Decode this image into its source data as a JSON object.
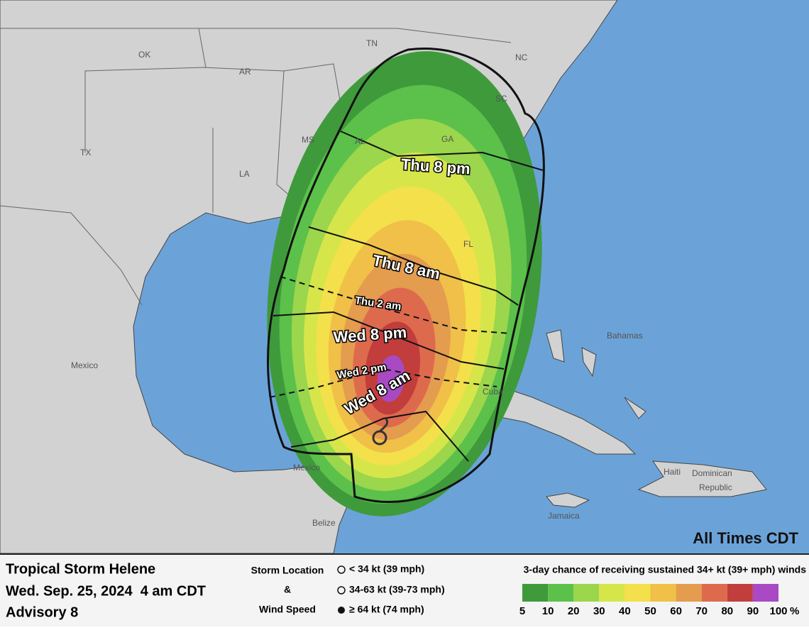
{
  "map": {
    "labels": {
      "ok": "OK",
      "ar": "AR",
      "tn": "TN",
      "nc": "NC",
      "sc": "SC",
      "ga": "GA",
      "al": "AL",
      "ms": "MS",
      "la": "LA",
      "tx": "TX",
      "fl": "FL",
      "mexico_west": "Mexico",
      "mexico_yucatan": "Mexico",
      "bahamas": "Bahamas",
      "cuba": "Cuba",
      "haiti": "Haiti",
      "dominican": "Dominican",
      "republic": "Republic",
      "jamaica": "Jamaica",
      "belize": "Belize"
    },
    "times": [
      "Thu 8 pm",
      "Thu 8 am",
      "Thu 2 am",
      "Wed 8 pm",
      "Wed 2 pm",
      "Wed 8 am"
    ],
    "note": "All Times CDT"
  },
  "footer": {
    "storm": "Tropical Storm Helene",
    "date": "Wed. Sep. 25, 2024  4 am CDT",
    "advisory": "Advisory 8",
    "key_title_1": "Storm Location",
    "key_title_2": "&",
    "key_title_3": "Wind Speed",
    "key": [
      "< 34 kt (39 mph)",
      "34-63 kt (39-73 mph)",
      "≥ 64 kt (74 mph)"
    ]
  },
  "legend": {
    "title": "3-day chance of receiving sustained 34+ kt (39+ mph) winds",
    "ticks": [
      5,
      10,
      20,
      30,
      40,
      50,
      60,
      70,
      80,
      90,
      100
    ],
    "unit": "%",
    "colors": [
      "#3f9a3c",
      "#5cc14a",
      "#9bd64c",
      "#d6e64a",
      "#f3e04a",
      "#f0c048",
      "#e49c4e",
      "#de6a4e",
      "#c13e3c",
      "#a94ac4"
    ]
  }
}
